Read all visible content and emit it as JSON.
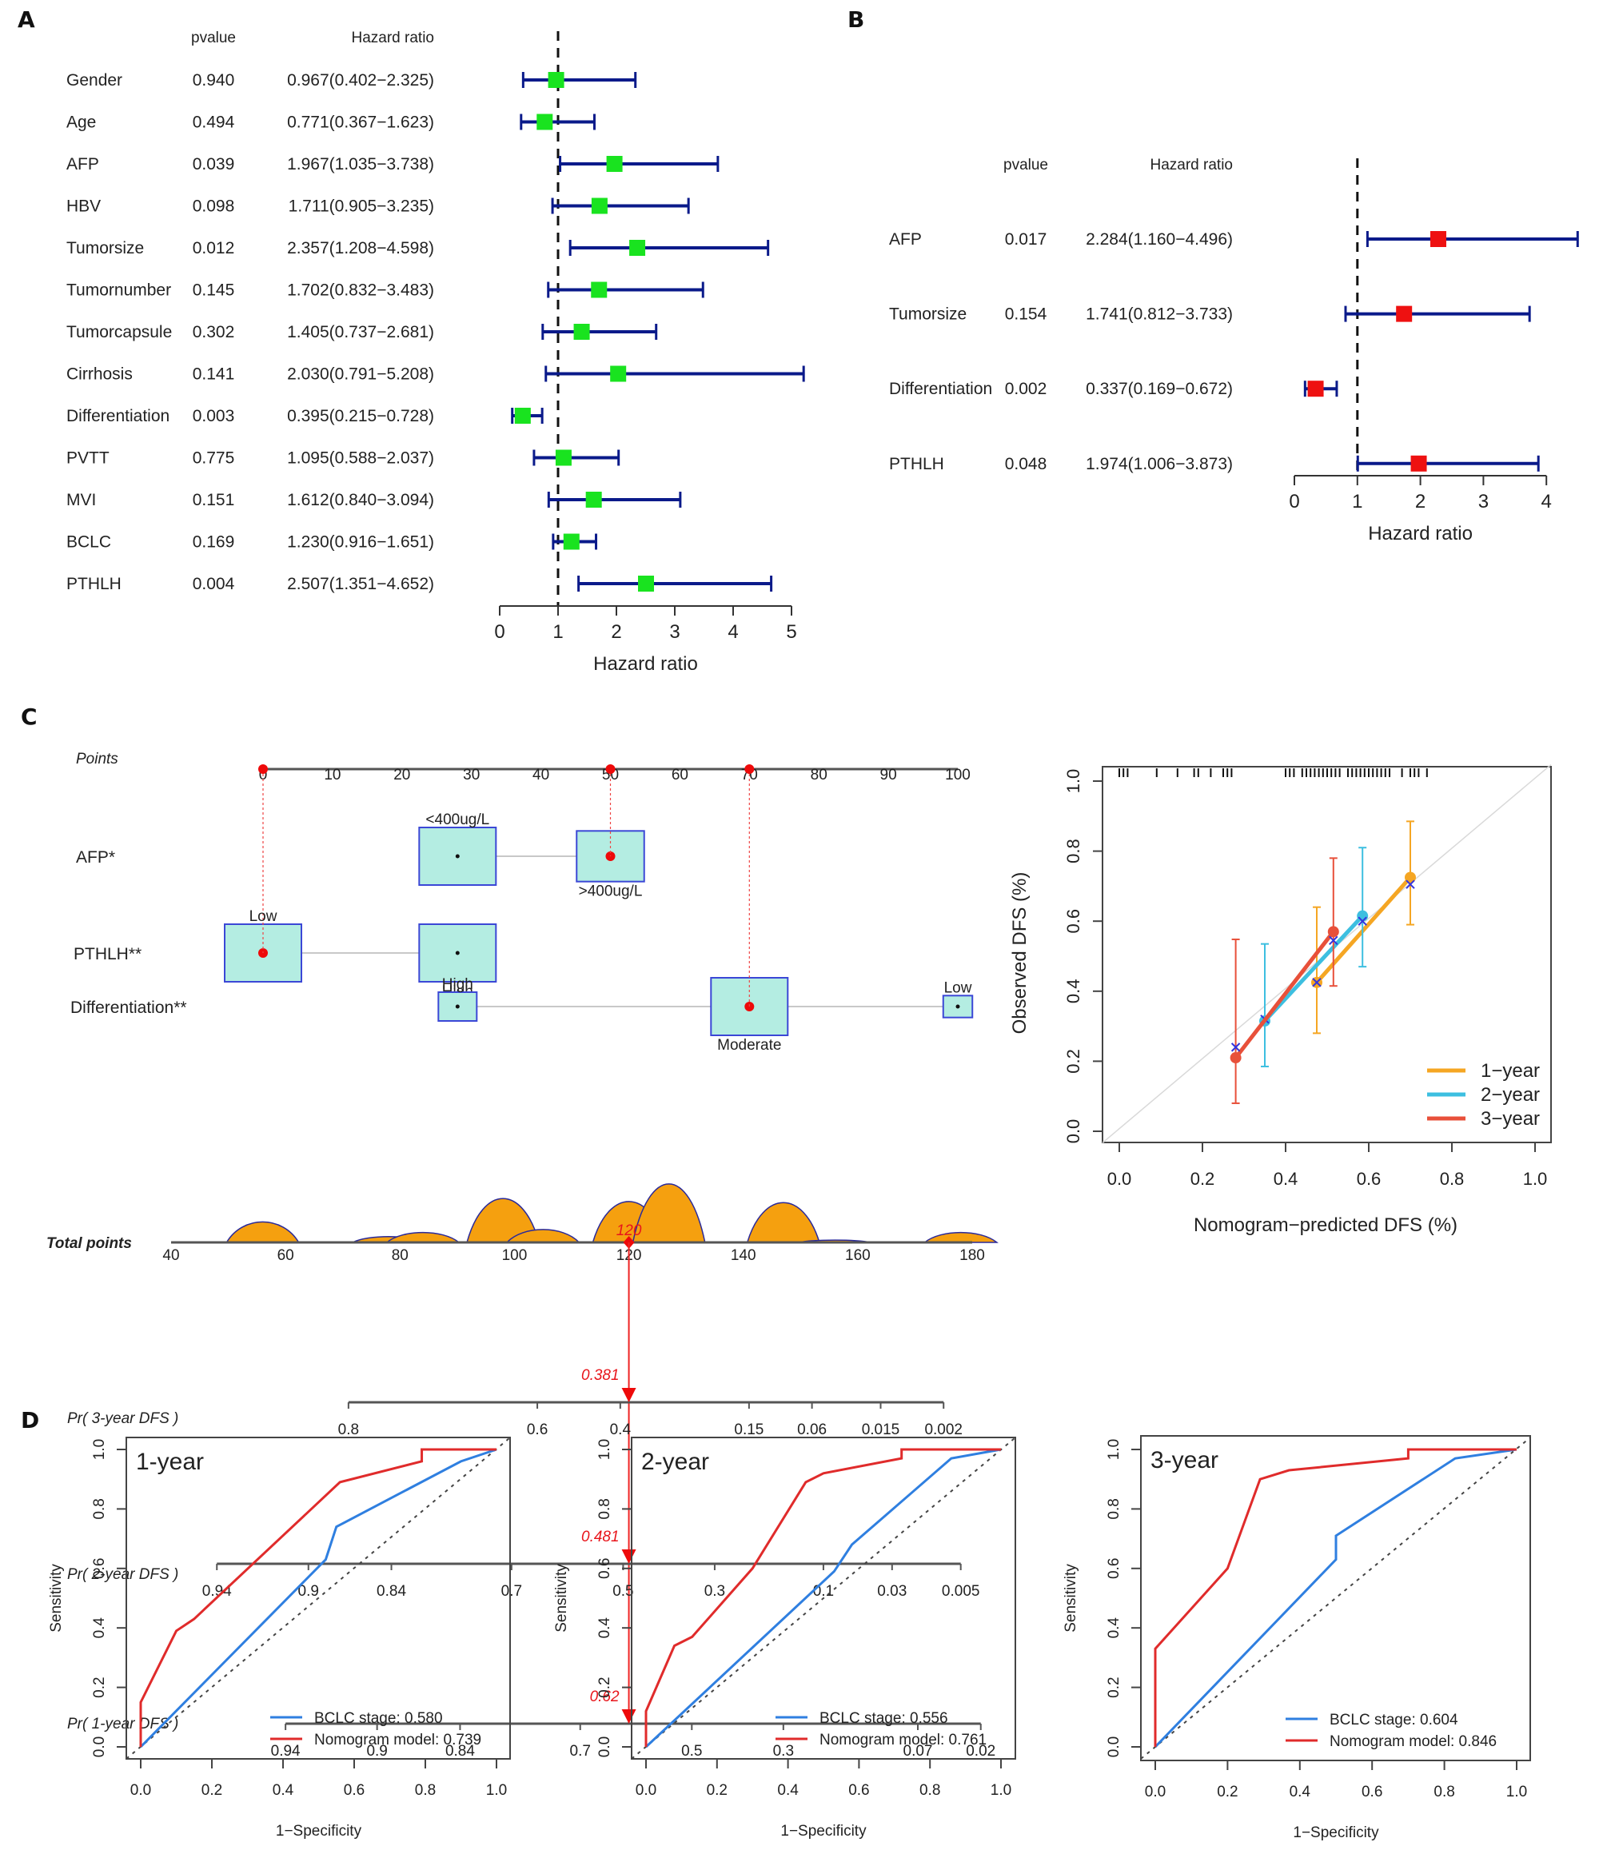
{
  "figure": {
    "panel_letters": {
      "a": "A",
      "b": "B",
      "c": "C",
      "d": "D"
    }
  },
  "chart_data": [
    {
      "id": "A",
      "type": "forest",
      "title": "",
      "col_headers": {
        "pvalue": "pvalue",
        "hr": "Hazard ratio"
      },
      "xlabel": "Hazard ratio",
      "xlim": [
        0,
        5
      ],
      "xticks": [
        0,
        1,
        2,
        3,
        4,
        5
      ],
      "reference_line": 1,
      "marker_color": "#19e31f",
      "ci_color": "#0a1a8a",
      "rows": [
        {
          "label": "Gender",
          "pvalue": "0.940",
          "hr_text": "0.967(0.402−2.325)",
          "hr": 0.967,
          "lo": 0.402,
          "hi": 2.325
        },
        {
          "label": "Age",
          "pvalue": "0.494",
          "hr_text": "0.771(0.367−1.623)",
          "hr": 0.771,
          "lo": 0.367,
          "hi": 1.623
        },
        {
          "label": "AFP",
          "pvalue": "0.039",
          "hr_text": "1.967(1.035−3.738)",
          "hr": 1.967,
          "lo": 1.035,
          "hi": 3.738
        },
        {
          "label": "HBV",
          "pvalue": "0.098",
          "hr_text": "1.711(0.905−3.235)",
          "hr": 1.711,
          "lo": 0.905,
          "hi": 3.235
        },
        {
          "label": "Tumorsize",
          "pvalue": "0.012",
          "hr_text": "2.357(1.208−4.598)",
          "hr": 2.357,
          "lo": 1.208,
          "hi": 4.598
        },
        {
          "label": "Tumornumber",
          "pvalue": "0.145",
          "hr_text": "1.702(0.832−3.483)",
          "hr": 1.702,
          "lo": 0.832,
          "hi": 3.483
        },
        {
          "label": "Tumorcapsule",
          "pvalue": "0.302",
          "hr_text": "1.405(0.737−2.681)",
          "hr": 1.405,
          "lo": 0.737,
          "hi": 2.681
        },
        {
          "label": "Cirrhosis",
          "pvalue": "0.141",
          "hr_text": "2.030(0.791−5.208)",
          "hr": 2.03,
          "lo": 0.791,
          "hi": 5.208
        },
        {
          "label": "Differentiation",
          "pvalue": "0.003",
          "hr_text": "0.395(0.215−0.728)",
          "hr": 0.395,
          "lo": 0.215,
          "hi": 0.728
        },
        {
          "label": "PVTT",
          "pvalue": "0.775",
          "hr_text": "1.095(0.588−2.037)",
          "hr": 1.095,
          "lo": 0.588,
          "hi": 2.037
        },
        {
          "label": "MVI",
          "pvalue": "0.151",
          "hr_text": "1.612(0.840−3.094)",
          "hr": 1.612,
          "lo": 0.84,
          "hi": 3.094
        },
        {
          "label": "BCLC",
          "pvalue": "0.169",
          "hr_text": "1.230(0.916−1.651)",
          "hr": 1.23,
          "lo": 0.916,
          "hi": 1.651
        },
        {
          "label": "PTHLH",
          "pvalue": "0.004",
          "hr_text": "2.507(1.351−4.652)",
          "hr": 2.507,
          "lo": 1.351,
          "hi": 4.652
        }
      ]
    },
    {
      "id": "B",
      "type": "forest",
      "title": "",
      "col_headers": {
        "pvalue": "pvalue",
        "hr": "Hazard ratio"
      },
      "xlabel": "Hazard ratio",
      "xlim": [
        0,
        4
      ],
      "xticks": [
        0,
        1,
        2,
        3,
        4
      ],
      "reference_line": 1,
      "marker_color": "#ee1111",
      "ci_color": "#0a1a8a",
      "rows": [
        {
          "label": "AFP",
          "pvalue": "0.017",
          "hr_text": "2.284(1.160−4.496)",
          "hr": 2.284,
          "lo": 1.16,
          "hi": 4.496
        },
        {
          "label": "Tumorsize",
          "pvalue": "0.154",
          "hr_text": "1.741(0.812−3.733)",
          "hr": 1.741,
          "lo": 0.812,
          "hi": 3.733
        },
        {
          "label": "Differentiation",
          "pvalue": "0.002",
          "hr_text": "0.337(0.169−0.672)",
          "hr": 0.337,
          "lo": 0.169,
          "hi": 0.672
        },
        {
          "label": "PTHLH",
          "pvalue": "0.048",
          "hr_text": "1.974(1.006−3.873)",
          "hr": 1.974,
          "lo": 1.006,
          "hi": 3.873
        }
      ]
    },
    {
      "id": "C-nomogram",
      "type": "nomogram",
      "points_axis": {
        "label": "Points",
        "min": 0,
        "max": 100,
        "ticks": [
          0,
          10,
          20,
          30,
          40,
          50,
          60,
          70,
          80,
          90,
          100
        ]
      },
      "variables": [
        {
          "label": "AFP*",
          "levels": [
            {
              "name": "<400ug/L",
              "points": 28,
              "size": 1.0,
              "label_pos": "above",
              "selected": false
            },
            {
              "name": ">400ug/L",
              "points": 50,
              "size": 0.88,
              "label_pos": "below",
              "selected": true
            }
          ]
        },
        {
          "label": "PTHLH**",
          "levels": [
            {
              "name": "Low",
              "points": 0,
              "size": 1.0,
              "label_pos": "above",
              "selected": true
            },
            {
              "name": "High",
              "points": 28,
              "size": 1.0,
              "label_pos": "below",
              "selected": false
            }
          ]
        },
        {
          "label": "Differentiation**",
          "levels": [
            {
              "name": "High",
              "points": 28,
              "size": 0.5,
              "label_pos": "above",
              "selected": false
            },
            {
              "name": "Moderate",
              "points": 70,
              "size": 1.0,
              "label_pos": "below",
              "selected": true
            },
            {
              "name": "Low",
              "points": 100,
              "size": 0.38,
              "label_pos": "above",
              "selected": false
            }
          ]
        }
      ],
      "total_points_axis": {
        "label": "Total points",
        "min": 40,
        "max": 180,
        "ticks": [
          40,
          60,
          80,
          100,
          120,
          140,
          160,
          180
        ]
      },
      "total_points_density": [
        {
          "x": 56,
          "h": 0.35
        },
        {
          "x": 78,
          "h": 0.1
        },
        {
          "x": 84,
          "h": 0.17
        },
        {
          "x": 98,
          "h": 0.75
        },
        {
          "x": 105,
          "h": 0.22
        },
        {
          "x": 120,
          "h": 0.7
        },
        {
          "x": 127,
          "h": 1.0
        },
        {
          "x": 147,
          "h": 0.68
        },
        {
          "x": 156,
          "h": 0.04
        },
        {
          "x": 178,
          "h": 0.17
        }
      ],
      "selected_total": 120,
      "selected_total_label": "120",
      "probability_axes": [
        {
          "label": "Pr( 3-year DFS )",
          "value_label": "0.381",
          "ticks": [
            {
              "t": "0.8",
              "pts": 71
            },
            {
              "t": "0.6",
              "pts": 104
            },
            {
              "t": "0.4",
              "pts": 118.5
            },
            {
              "t": "0.15",
              "pts": 141
            },
            {
              "t": "0.06",
              "pts": 152
            },
            {
              "t": "0.015",
              "pts": 164
            },
            {
              "t": "0.002",
              "pts": 175
            }
          ]
        },
        {
          "label": "Pr( 2-year DFS )",
          "value_label": "0.481",
          "ticks": [
            {
              "t": "0.94",
              "pts": 48
            },
            {
              "t": "0.9",
              "pts": 64
            },
            {
              "t": "0.84",
              "pts": 78.5
            },
            {
              "t": "0.7",
              "pts": 99.5
            },
            {
              "t": "0.5",
              "pts": 119
            },
            {
              "t": "0.3",
              "pts": 135
            },
            {
              "t": "0.1",
              "pts": 154
            },
            {
              "t": "0.03",
              "pts": 166
            },
            {
              "t": "0.005",
              "pts": 178
            }
          ]
        },
        {
          "label": "Pr( 1-year DFS )",
          "value_label": "0.62",
          "ticks": [
            {
              "t": "0.94",
              "pts": 60
            },
            {
              "t": "0.9",
              "pts": 76
            },
            {
              "t": "0.84",
              "pts": 90.5
            },
            {
              "t": "0.7",
              "pts": 111.5
            },
            {
              "t": "0.5",
              "pts": 131
            },
            {
              "t": "0.3",
              "pts": 147
            },
            {
              "t": "0.07",
              "pts": 170.5
            },
            {
              "t": "0.02",
              "pts": 181.5
            }
          ]
        }
      ]
    },
    {
      "id": "C-calibration",
      "type": "line",
      "xlabel": "Nomogram−predicted DFS (%)",
      "ylabel": "Observed DFS (%)",
      "xlim": [
        0,
        1
      ],
      "ylim": [
        0,
        1
      ],
      "xticks": [
        "0.0",
        "0.2",
        "0.4",
        "0.6",
        "0.8",
        "1.0"
      ],
      "yticks": [
        "0.0",
        "0.2",
        "0.4",
        "0.6",
        "0.8",
        "1.0"
      ],
      "legend_position": "bottom-right",
      "rug": [
        0.0,
        0.01,
        0.02,
        0.09,
        0.14,
        0.18,
        0.19,
        0.22,
        0.25,
        0.26,
        0.27,
        0.4,
        0.41,
        0.42,
        0.44,
        0.45,
        0.46,
        0.47,
        0.48,
        0.49,
        0.5,
        0.51,
        0.52,
        0.53,
        0.55,
        0.56,
        0.57,
        0.58,
        0.59,
        0.6,
        0.61,
        0.62,
        0.63,
        0.64,
        0.65,
        0.68,
        0.7,
        0.71,
        0.72,
        0.74
      ],
      "series": [
        {
          "name": "1−year",
          "color": "#f5a623",
          "points": [
            {
              "x": 0.475,
              "y": 0.425,
              "lo": 0.28,
              "hi": 0.64
            },
            {
              "x": 0.7,
              "y": 0.725,
              "lo": 0.59,
              "hi": 0.885
            }
          ],
          "ideal_x": [
            0.475,
            0.7
          ],
          "ideal_y": [
            0.425,
            0.705
          ]
        },
        {
          "name": "2−year",
          "color": "#3dbfe0",
          "points": [
            {
              "x": 0.35,
              "y": 0.315,
              "lo": 0.185,
              "hi": 0.535
            },
            {
              "x": 0.585,
              "y": 0.615,
              "lo": 0.47,
              "hi": 0.81
            }
          ],
          "ideal_x": [
            0.35,
            0.585
          ],
          "ideal_y": [
            0.32,
            0.6
          ]
        },
        {
          "name": "3−year",
          "color": "#e8503a",
          "points": [
            {
              "x": 0.28,
              "y": 0.21,
              "lo": 0.08,
              "hi": 0.548
            },
            {
              "x": 0.515,
              "y": 0.57,
              "lo": 0.415,
              "hi": 0.78
            }
          ],
          "ideal_x": [
            0.28,
            0.515
          ],
          "ideal_y": [
            0.24,
            0.545
          ]
        }
      ]
    },
    {
      "id": "D-1year",
      "type": "line",
      "panel_title": "1-year",
      "xlabel": "1−Specificity",
      "ylabel": "Sensitivity",
      "xlim": [
        0,
        1
      ],
      "ylim": [
        0,
        1
      ],
      "xticks": [
        "0.0",
        "0.2",
        "0.4",
        "0.6",
        "0.8",
        "1.0"
      ],
      "yticks": [
        "0.0",
        "0.2",
        "0.4",
        "0.6",
        "0.8",
        "1.0"
      ],
      "legend_position": "bottom-right",
      "series": [
        {
          "name": "BCLC stage: 0.580",
          "color": "#2f7fe0",
          "x": [
            0,
            0.52,
            0.55,
            0.9,
            1.0
          ],
          "y": [
            0,
            0.63,
            0.74,
            0.96,
            1.0
          ]
        },
        {
          "name": "Nomogram model: 0.739",
          "color": "#e02b2b",
          "x": [
            0,
            0,
            0.1,
            0.15,
            0.56,
            0.79,
            0.79,
            1.0
          ],
          "y": [
            0,
            0.15,
            0.39,
            0.43,
            0.89,
            0.96,
            1.0,
            1.0
          ]
        }
      ]
    },
    {
      "id": "D-2year",
      "type": "line",
      "panel_title": "2-year",
      "xlabel": "1−Specificity",
      "ylabel": "Sensitivity",
      "xlim": [
        0,
        1
      ],
      "ylim": [
        0,
        1
      ],
      "xticks": [
        "0.0",
        "0.2",
        "0.4",
        "0.6",
        "0.8",
        "1.0"
      ],
      "yticks": [
        "0.0",
        "0.2",
        "0.4",
        "0.6",
        "0.8",
        "1.0"
      ],
      "legend_position": "bottom-right",
      "series": [
        {
          "name": "BCLC stage: 0.556",
          "color": "#2f7fe0",
          "x": [
            0,
            0.53,
            0.58,
            0.86,
            1.0
          ],
          "y": [
            0,
            0.59,
            0.68,
            0.97,
            1.0
          ]
        },
        {
          "name": "Nomogram model: 0.761",
          "color": "#e02b2b",
          "x": [
            0,
            0,
            0.08,
            0.13,
            0.3,
            0.45,
            0.5,
            0.72,
            0.72,
            1.0
          ],
          "y": [
            0,
            0.12,
            0.34,
            0.37,
            0.6,
            0.89,
            0.92,
            0.97,
            1.0,
            1.0
          ]
        }
      ]
    },
    {
      "id": "D-3year",
      "type": "line",
      "panel_title": "3-year",
      "xlabel": "1−Specificity",
      "ylabel": "Sensitivity",
      "xlim": [
        0,
        1
      ],
      "ylim": [
        0,
        1
      ],
      "xticks": [
        "0.0",
        "0.2",
        "0.4",
        "0.6",
        "0.8",
        "1.0"
      ],
      "yticks": [
        "0.0",
        "0.2",
        "0.4",
        "0.6",
        "0.8",
        "1.0"
      ],
      "legend_position": "bottom-right",
      "series": [
        {
          "name": "BCLC stage: 0.604",
          "color": "#2f7fe0",
          "x": [
            0,
            0.5,
            0.5,
            0.83,
            1.0
          ],
          "y": [
            0,
            0.63,
            0.71,
            0.97,
            1.0
          ]
        },
        {
          "name": "Nomogram model: 0.846",
          "color": "#e02b2b",
          "x": [
            0,
            0,
            0.2,
            0.29,
            0.37,
            0.7,
            0.7,
            1.0
          ],
          "y": [
            0,
            0.33,
            0.6,
            0.9,
            0.93,
            0.97,
            1.0,
            1.0
          ]
        }
      ]
    }
  ]
}
